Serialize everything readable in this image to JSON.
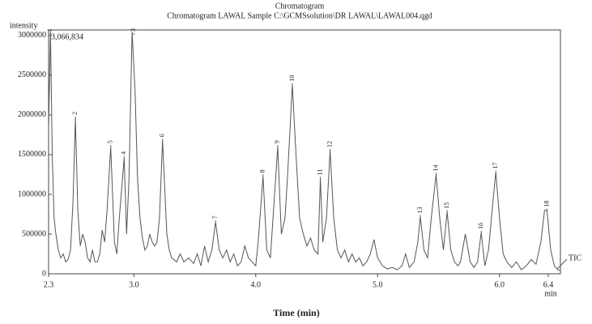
{
  "chart_data": {
    "type": "line",
    "title": "Chromatogram",
    "subtitle": "Chromatogram LAWAL Sample C:\\GCMSsolution\\DR LAWAL\\LAWAL004.qgd",
    "y_label": "intensity",
    "x_unit": "min",
    "x_label": "Time (min)",
    "max_annotation": "3,066,834",
    "series": [
      {
        "name": "TIC",
        "color": "#555555",
        "x": [
          2.3,
          2.315,
          2.33,
          2.345,
          2.36,
          2.38,
          2.4,
          2.42,
          2.44,
          2.46,
          2.48,
          2.5,
          2.52,
          2.54,
          2.56,
          2.58,
          2.6,
          2.62,
          2.64,
          2.66,
          2.68,
          2.7,
          2.72,
          2.74,
          2.76,
          2.78,
          2.81,
          2.84,
          2.86,
          2.88,
          2.92,
          2.94,
          2.96,
          2.985,
          3.01,
          3.03,
          3.05,
          3.07,
          3.09,
          3.11,
          3.13,
          3.15,
          3.17,
          3.19,
          3.21,
          3.235,
          3.27,
          3.29,
          3.31,
          3.35,
          3.38,
          3.41,
          3.45,
          3.49,
          3.52,
          3.55,
          3.58,
          3.61,
          3.64,
          3.67,
          3.7,
          3.73,
          3.76,
          3.79,
          3.82,
          3.85,
          3.88,
          3.91,
          3.94,
          3.97,
          4.0,
          4.02,
          4.06,
          4.09,
          4.12,
          4.15,
          4.18,
          4.21,
          4.24,
          4.26,
          4.3,
          4.33,
          4.36,
          4.39,
          4.42,
          4.45,
          4.48,
          4.51,
          4.53,
          4.55,
          4.58,
          4.61,
          4.64,
          4.67,
          4.7,
          4.73,
          4.76,
          4.79,
          4.82,
          4.85,
          4.88,
          4.91,
          4.94,
          4.97,
          5.0,
          5.04,
          5.08,
          5.12,
          5.16,
          5.2,
          5.23,
          5.26,
          5.3,
          5.33,
          5.35,
          5.38,
          5.41,
          5.44,
          5.48,
          5.51,
          5.54,
          5.57,
          5.6,
          5.63,
          5.66,
          5.68,
          5.72,
          5.76,
          5.79,
          5.82,
          5.85,
          5.88,
          5.91,
          5.94,
          5.97,
          6.0,
          6.03,
          6.06,
          6.1,
          6.14,
          6.18,
          6.22,
          6.26,
          6.3,
          6.34,
          6.37,
          6.39,
          6.42,
          6.45,
          6.48,
          6.5
        ],
        "values": [
          1800000,
          3066834,
          1500000,
          700000,
          500000,
          300000,
          200000,
          250000,
          150000,
          180000,
          300000,
          900000,
          1960000,
          800000,
          350000,
          500000,
          400000,
          200000,
          150000,
          300000,
          150000,
          150000,
          250000,
          550000,
          400000,
          800000,
          1600000,
          400000,
          250000,
          700000,
          1460000,
          500000,
          1200000,
          3050000,
          2300000,
          1200000,
          700000,
          450000,
          300000,
          350000,
          500000,
          400000,
          350000,
          400000,
          700000,
          1680000,
          500000,
          300000,
          200000,
          150000,
          250000,
          150000,
          200000,
          130000,
          250000,
          100000,
          350000,
          150000,
          300000,
          650000,
          300000,
          200000,
          300000,
          150000,
          250000,
          100000,
          150000,
          350000,
          200000,
          150000,
          100000,
          400000,
          1230000,
          300000,
          200000,
          900000,
          1600000,
          500000,
          700000,
          1200000,
          2380000,
          1500000,
          700000,
          500000,
          350000,
          450000,
          300000,
          250000,
          1200000,
          400000,
          700000,
          1550000,
          700000,
          300000,
          200000,
          300000,
          150000,
          250000,
          150000,
          200000,
          100000,
          150000,
          250000,
          430000,
          200000,
          100000,
          60000,
          80000,
          50000,
          100000,
          250000,
          80000,
          150000,
          400000,
          720000,
          300000,
          200000,
          700000,
          1250000,
          700000,
          300000,
          780000,
          300000,
          150000,
          100000,
          150000,
          500000,
          150000,
          80000,
          150000,
          520000,
          100000,
          300000,
          800000,
          1280000,
          700000,
          250000,
          150000,
          80000,
          150000,
          50000,
          100000,
          180000,
          120000,
          400000,
          800000,
          800000,
          300000,
          100000,
          50000,
          40000
        ]
      }
    ],
    "peaks": [
      {
        "label": "1",
        "x": 2.315,
        "y": 3066834
      },
      {
        "label": "2",
        "x": 2.52,
        "y": 1960000
      },
      {
        "label": "3",
        "x": 3.0,
        "y": 3050000
      },
      {
        "label": "4",
        "x": 2.92,
        "y": 1460000
      },
      {
        "label": "5",
        "x": 2.81,
        "y": 1600000
      },
      {
        "label": "6",
        "x": 3.235,
        "y": 1680000
      },
      {
        "label": "7",
        "x": 3.67,
        "y": 650000
      },
      {
        "label": "8",
        "x": 4.06,
        "y": 1230000
      },
      {
        "label": "9",
        "x": 4.18,
        "y": 1600000
      },
      {
        "label": "10",
        "x": 4.3,
        "y": 2380000
      },
      {
        "label": "11",
        "x": 4.53,
        "y": 1200000
      },
      {
        "label": "12",
        "x": 4.61,
        "y": 1550000
      },
      {
        "label": "13",
        "x": 5.35,
        "y": 720000
      },
      {
        "label": "14",
        "x": 5.48,
        "y": 1250000
      },
      {
        "label": "15",
        "x": 5.57,
        "y": 780000
      },
      {
        "label": "16",
        "x": 5.85,
        "y": 520000
      },
      {
        "label": "17",
        "x": 5.97,
        "y": 1280000
      },
      {
        "label": "18",
        "x": 6.39,
        "y": 800000
      }
    ],
    "xlim": [
      2.3,
      6.5
    ],
    "ylim": [
      0,
      3070000
    ],
    "xticks": [
      2.3,
      {
        "value": 3,
        "label": "3.0"
      },
      {
        "value": 4,
        "label": "4.0"
      },
      {
        "value": 5,
        "label": "5.0"
      },
      {
        "value": 6,
        "label": "6.0"
      },
      6.4
    ],
    "yticks": [
      0,
      500000,
      1000000,
      1500000,
      2000000,
      2500000,
      3000000
    ]
  }
}
